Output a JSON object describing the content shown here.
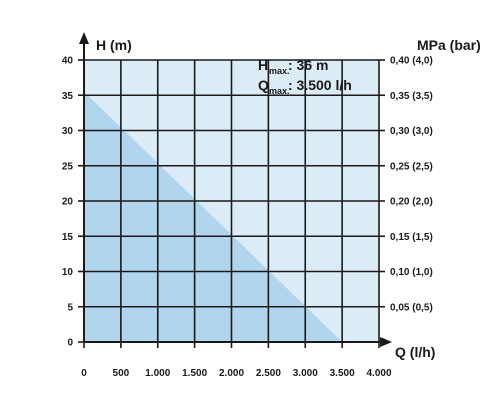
{
  "chart_data": {
    "type": "area",
    "x": [
      0,
      3500
    ],
    "y": [
      35.5,
      0
    ],
    "xlim": [
      0,
      4000
    ],
    "ylim": [
      0,
      40
    ],
    "x_ticks": [
      0,
      500,
      1000,
      1500,
      2000,
      2500,
      3000,
      3500,
      4000
    ],
    "x_tick_labels": [
      "0",
      "500",
      "1.000",
      "1.500",
      "2.000",
      "2.500",
      "3.000",
      "3.500",
      "4.000"
    ],
    "y_ticks": [
      0,
      5,
      10,
      15,
      20,
      25,
      30,
      35,
      40
    ],
    "y_tick_labels": [
      "0",
      "5",
      "10",
      "15",
      "20",
      "25",
      "30",
      "35",
      "40"
    ],
    "y2_tick_labels": [
      "0,05 (0,5)",
      "0,10 (1,0)",
      "0,15 (1,5)",
      "0,20 (2,0)",
      "0,25 (2,5)",
      "0,30 (3,0)",
      "0,35 (3,5)",
      "0,40 (4,0)"
    ],
    "ylabel": "H (m)",
    "y2label": "MPa (bar)",
    "xlabel": "Q (l/h)",
    "annotations": {
      "h_main": "H",
      "h_sub": "max.",
      "h_value": ": 36 m",
      "q_main": "Q",
      "q_sub": "max.",
      "q_value": ": 3.500 l/h"
    },
    "grid": true,
    "colors": {
      "background": "#dcecf7",
      "fill": "#b0d5ec",
      "grid": "#1a1a1a",
      "text": "#1a1a1a"
    }
  }
}
